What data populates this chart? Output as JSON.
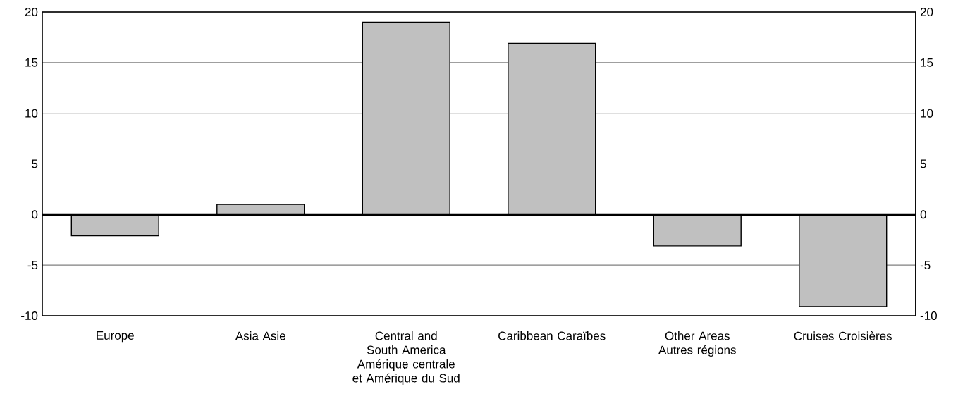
{
  "chart_data": {
    "type": "bar",
    "categories": [
      "Europe",
      "Asia Asie",
      "Central and South America Amérique centrale et Amérique du Sud",
      "Caribbean Caraïbes",
      "Other Areas Autres régions",
      "Cruises Croisières"
    ],
    "values": [
      -2.1,
      1.0,
      19.0,
      16.9,
      -3.1,
      -9.1
    ],
    "color": "#c0c0c0",
    "ylim": [
      -10,
      20
    ],
    "yticks": [
      -10,
      -5,
      0,
      5,
      10,
      15,
      20
    ],
    "y2lim": [
      -10,
      20
    ],
    "y2ticks": [
      -10,
      -5,
      0,
      5,
      10,
      15,
      20
    ],
    "grid": "y"
  }
}
